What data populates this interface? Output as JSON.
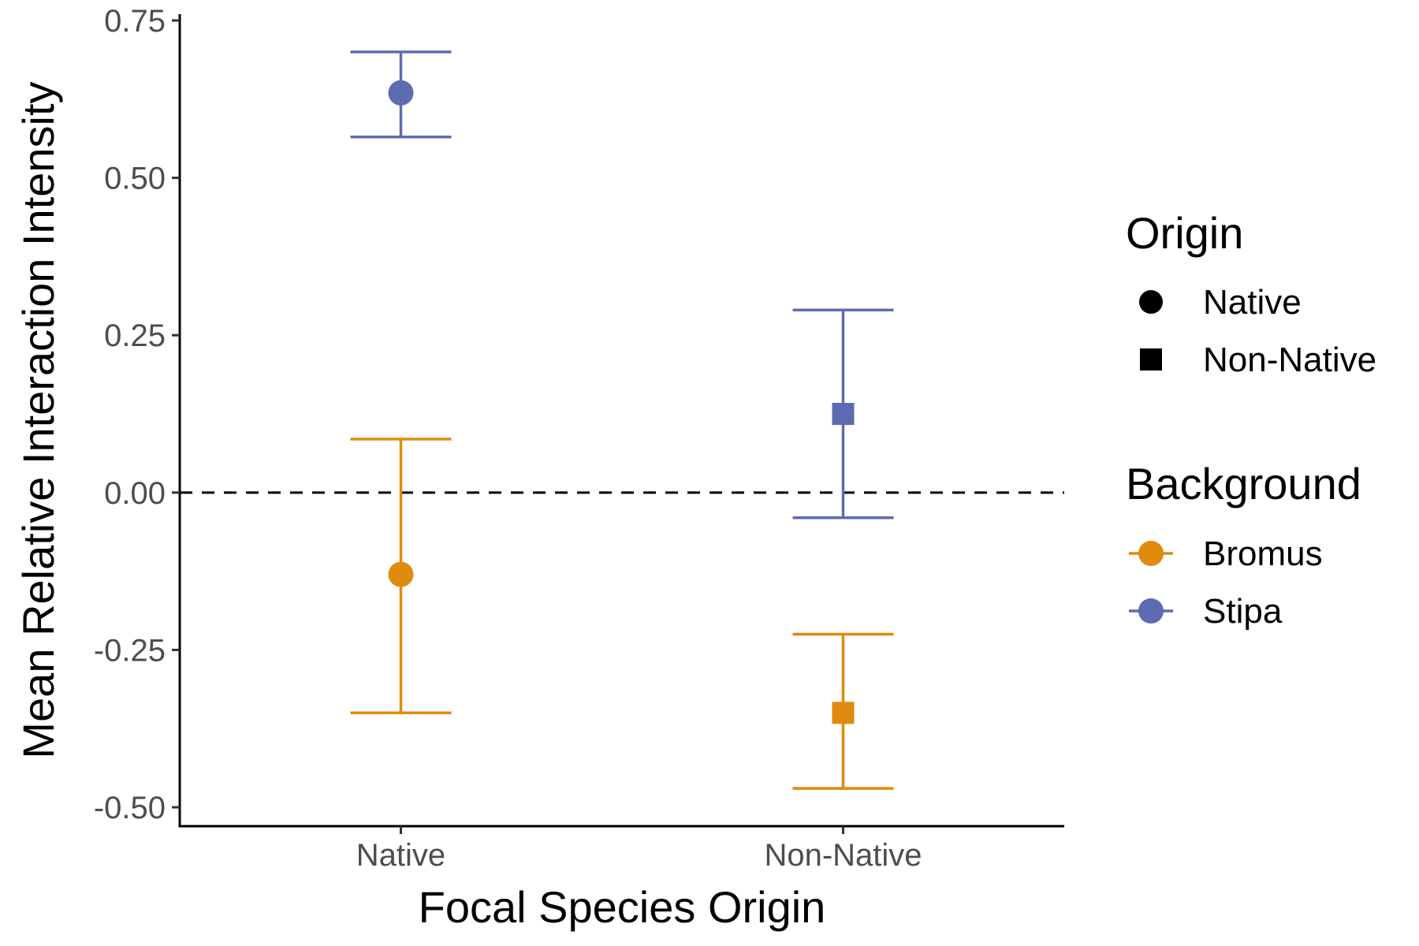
{
  "chart_data": {
    "type": "scatter",
    "xlabel": "Focal Species Origin",
    "ylabel": "Mean Relative Interaction Intensity",
    "categories": [
      "Native",
      "Non-Native"
    ],
    "ylim": [
      -0.53,
      0.76
    ],
    "yticks": [
      -0.5,
      -0.25,
      0.0,
      0.25,
      0.5,
      0.75
    ],
    "ytick_labels": [
      "-0.50",
      "-0.25",
      "0.00",
      "0.25",
      "0.50",
      "0.75"
    ],
    "reference_line": {
      "y": 0,
      "style": "dashed"
    },
    "grid": false,
    "legend_placement": "right",
    "shape_legend": {
      "title": "Origin",
      "entries": [
        {
          "label": "Native",
          "shape": "circle"
        },
        {
          "label": "Non-Native",
          "shape": "square"
        }
      ]
    },
    "color_legend": {
      "title": "Background",
      "entries": [
        {
          "label": "Bromus",
          "color": "#E08B0E"
        },
        {
          "label": "Stipa",
          "color": "#5D6BB1"
        }
      ]
    },
    "series": [
      {
        "name": "Bromus",
        "color": "#E08B0E",
        "points": [
          {
            "x": "Native",
            "shape": "circle",
            "y": -0.13,
            "ymin": -0.35,
            "ymax": 0.085
          },
          {
            "x": "Non-Native",
            "shape": "square",
            "y": -0.35,
            "ymin": -0.47,
            "ymax": -0.225
          }
        ]
      },
      {
        "name": "Stipa",
        "color": "#5D6BB1",
        "points": [
          {
            "x": "Native",
            "shape": "circle",
            "y": 0.635,
            "ymin": 0.565,
            "ymax": 0.7
          },
          {
            "x": "Non-Native",
            "shape": "square",
            "y": 0.125,
            "ymin": -0.04,
            "ymax": 0.29
          }
        ]
      }
    ]
  }
}
